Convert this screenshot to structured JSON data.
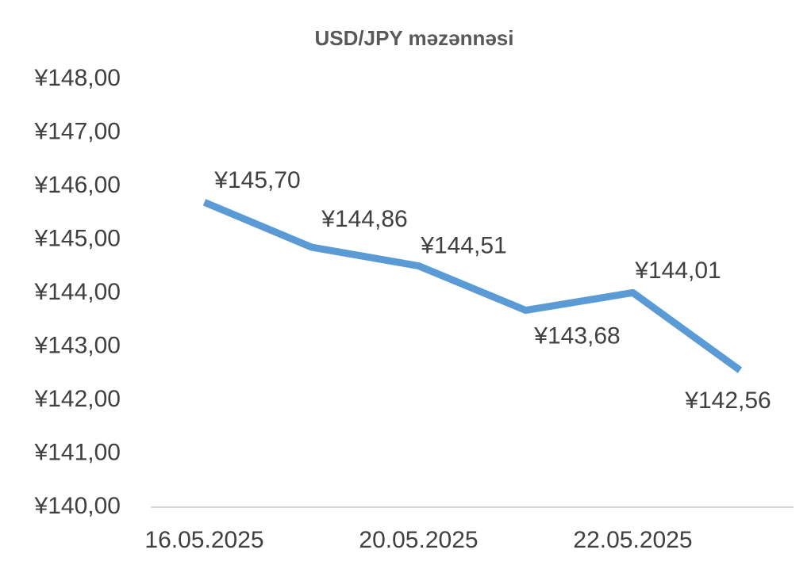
{
  "chart_data": {
    "type": "line",
    "title": "USD/JPY məzənnəsi",
    "categories": [
      "16.05.2025",
      null,
      "20.05.2025",
      null,
      "22.05.2025",
      null
    ],
    "series": [
      {
        "name": "USD/JPY",
        "color": "#5b9bd5",
        "values": [
          145.7,
          144.86,
          144.51,
          143.68,
          144.01,
          142.56
        ],
        "value_labels": [
          "¥145,70",
          "¥144,86",
          "¥144,51",
          "¥143,68",
          "¥144,01",
          "¥142,56"
        ]
      }
    ],
    "ylim": [
      140,
      148
    ],
    "yticks": [
      {
        "value": 140,
        "label": "¥140,00"
      },
      {
        "value": 141,
        "label": "¥141,00"
      },
      {
        "value": 142,
        "label": "¥142,00"
      },
      {
        "value": 143,
        "label": "¥143,00"
      },
      {
        "value": 144,
        "label": "¥144,00"
      },
      {
        "value": 145,
        "label": "¥145,00"
      },
      {
        "value": 146,
        "label": "¥146,00"
      },
      {
        "value": 147,
        "label": "¥147,00"
      },
      {
        "value": 148,
        "label": "¥148,00"
      }
    ],
    "grid": false
  }
}
